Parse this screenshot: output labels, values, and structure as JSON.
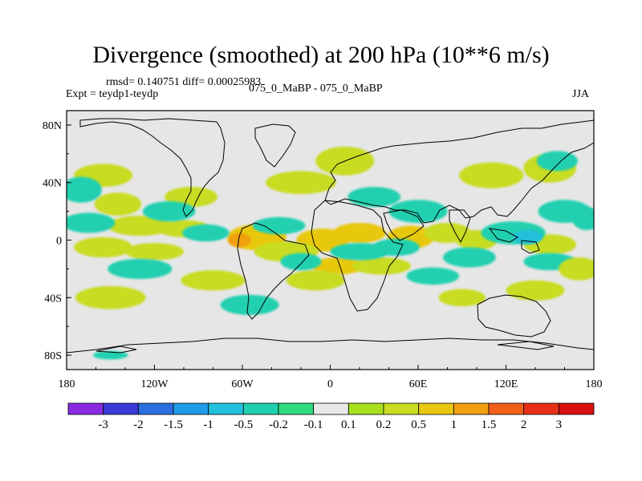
{
  "chart_data": {
    "type": "heatmap",
    "title": "Divergence (smoothed) at 200 hPa (10**6 m/s)",
    "stats_line": "rmsd= 0.140751 diff= 0.00025983",
    "expt_line": "Expt = teydp1-teydp",
    "center_label": "075_0_MaBP - 075_0_MaBP",
    "season_label": "JJA",
    "x_axis": {
      "range": [
        -180,
        180
      ],
      "ticks": [
        {
          "value": -180,
          "label": "180"
        },
        {
          "value": -120,
          "label": "120W"
        },
        {
          "value": -60,
          "label": "60W"
        },
        {
          "value": 0,
          "label": "0"
        },
        {
          "value": 60,
          "label": "60E"
        },
        {
          "value": 120,
          "label": "120E"
        },
        {
          "value": 180,
          "label": "180"
        }
      ]
    },
    "y_axis": {
      "range": [
        -90,
        90
      ],
      "ticks": [
        {
          "value": 80,
          "label": "80N"
        },
        {
          "value": 40,
          "label": "40N"
        },
        {
          "value": 0,
          "label": "0"
        },
        {
          "value": -40,
          "label": "40S"
        },
        {
          "value": -80,
          "label": "80S"
        }
      ]
    },
    "colorbar": {
      "labels": [
        "-3",
        "-2",
        "-1.5",
        "-1",
        "-0.5",
        "-0.2",
        "-0.1",
        "0.1",
        "0.2",
        "0.5",
        "1",
        "1.5",
        "2",
        "3"
      ],
      "colors": [
        "#8a2be2",
        "#3a3ad8",
        "#2a6ee0",
        "#1e9de6",
        "#22c0dc",
        "#20d0b0",
        "#30dc80",
        "#e8e8e8",
        "#a8e020",
        "#c8dc20",
        "#e8c810",
        "#f0a010",
        "#f06018",
        "#e83018",
        "#d81010"
      ]
    },
    "anomalies": [
      {
        "lon": -5,
        "lat": 0,
        "w": 18,
        "h": 8,
        "v": 0.6
      },
      {
        "lon": -50,
        "lat": 2,
        "w": 20,
        "h": 9,
        "v": 0.7
      },
      {
        "lon": -62,
        "lat": 0,
        "w": 8,
        "h": 5,
        "v": 1.2
      },
      {
        "lon": -30,
        "lat": -8,
        "w": 22,
        "h": 7,
        "v": 0.3
      },
      {
        "lon": 20,
        "lat": 5,
        "w": 18,
        "h": 7,
        "v": 0.5
      },
      {
        "lon": 55,
        "lat": 2,
        "w": 16,
        "h": 8,
        "v": 0.7
      },
      {
        "lon": 80,
        "lat": 5,
        "w": 16,
        "h": 7,
        "v": 0.3
      },
      {
        "lon": 100,
        "lat": 0,
        "w": 14,
        "h": 7,
        "v": 0.25
      },
      {
        "lon": 150,
        "lat": -3,
        "w": 18,
        "h": 7,
        "v": 0.3
      },
      {
        "lon": -155,
        "lat": -5,
        "w": 20,
        "h": 7,
        "v": 0.25
      },
      {
        "lon": -120,
        "lat": -8,
        "w": 20,
        "h": 6,
        "v": 0.3
      },
      {
        "lon": -100,
        "lat": 8,
        "w": 18,
        "h": 6,
        "v": 0.3
      },
      {
        "lon": -130,
        "lat": 10,
        "w": 22,
        "h": 7,
        "v": 0.3
      },
      {
        "lon": -145,
        "lat": 25,
        "w": 16,
        "h": 8,
        "v": 0.3
      },
      {
        "lon": -95,
        "lat": 30,
        "w": 18,
        "h": 7,
        "v": 0.3
      },
      {
        "lon": -155,
        "lat": 45,
        "w": 20,
        "h": 8,
        "v": 0.3
      },
      {
        "lon": -20,
        "lat": 40,
        "w": 24,
        "h": 8,
        "v": 0.3
      },
      {
        "lon": 10,
        "lat": 55,
        "w": 20,
        "h": 10,
        "v": 0.3
      },
      {
        "lon": 150,
        "lat": 50,
        "w": 18,
        "h": 10,
        "v": 0.25
      },
      {
        "lon": 110,
        "lat": 45,
        "w": 22,
        "h": 9,
        "v": 0.3
      },
      {
        "lon": 5,
        "lat": -18,
        "w": 18,
        "h": 6,
        "v": 0.5
      },
      {
        "lon": 35,
        "lat": -18,
        "w": 20,
        "h": 6,
        "v": 0.4
      },
      {
        "lon": -10,
        "lat": -28,
        "w": 20,
        "h": 7,
        "v": 0.3
      },
      {
        "lon": -80,
        "lat": -28,
        "w": 22,
        "h": 7,
        "v": 0.25
      },
      {
        "lon": -150,
        "lat": -40,
        "w": 24,
        "h": 8,
        "v": 0.3
      },
      {
        "lon": 140,
        "lat": -35,
        "w": 20,
        "h": 7,
        "v": 0.3
      },
      {
        "lon": 90,
        "lat": -40,
        "w": 16,
        "h": 6,
        "v": 0.25
      },
      {
        "lon": -85,
        "lat": 5,
        "w": 16,
        "h": 6,
        "v": -0.3
      },
      {
        "lon": -35,
        "lat": 10,
        "w": 18,
        "h": 6,
        "v": -0.3
      },
      {
        "lon": 20,
        "lat": -8,
        "w": 20,
        "h": 6,
        "v": -0.3
      },
      {
        "lon": 45,
        "lat": -5,
        "w": 16,
        "h": 6,
        "v": -0.4
      },
      {
        "lon": 125,
        "lat": 5,
        "w": 22,
        "h": 8,
        "v": -0.4
      },
      {
        "lon": 135,
        "lat": 2,
        "w": 10,
        "h": 5,
        "v": -0.8
      },
      {
        "lon": 95,
        "lat": -12,
        "w": 18,
        "h": 7,
        "v": -0.3
      },
      {
        "lon": -110,
        "lat": 20,
        "w": 18,
        "h": 7,
        "v": -0.3
      },
      {
        "lon": -130,
        "lat": -20,
        "w": 22,
        "h": 7,
        "v": -0.3
      },
      {
        "lon": -165,
        "lat": 12,
        "w": 18,
        "h": 7,
        "v": -0.25
      },
      {
        "lon": 60,
        "lat": 20,
        "w": 20,
        "h": 8,
        "v": -0.3
      },
      {
        "lon": 30,
        "lat": 30,
        "w": 18,
        "h": 7,
        "v": -0.25
      },
      {
        "lon": 160,
        "lat": 20,
        "w": 18,
        "h": 8,
        "v": -0.3
      },
      {
        "lon": 175,
        "lat": 15,
        "w": 10,
        "h": 8,
        "v": -0.5
      },
      {
        "lon": 155,
        "lat": 55,
        "w": 14,
        "h": 7,
        "v": -0.3
      },
      {
        "lon": -170,
        "lat": 35,
        "w": 14,
        "h": 9,
        "v": -0.25
      },
      {
        "lon": 70,
        "lat": -25,
        "w": 18,
        "h": 6,
        "v": -0.3
      },
      {
        "lon": -55,
        "lat": -45,
        "w": 20,
        "h": 7,
        "v": -0.25
      },
      {
        "lon": 150,
        "lat": -15,
        "w": 18,
        "h": 6,
        "v": -0.3
      },
      {
        "lon": -20,
        "lat": -15,
        "w": 14,
        "h": 6,
        "v": -0.25
      },
      {
        "lon": -150,
        "lat": -80,
        "w": 12,
        "h": 3,
        "v": -0.25
      },
      {
        "lon": 170,
        "lat": -20,
        "w": 14,
        "h": 8,
        "v": 0.3
      }
    ]
  }
}
